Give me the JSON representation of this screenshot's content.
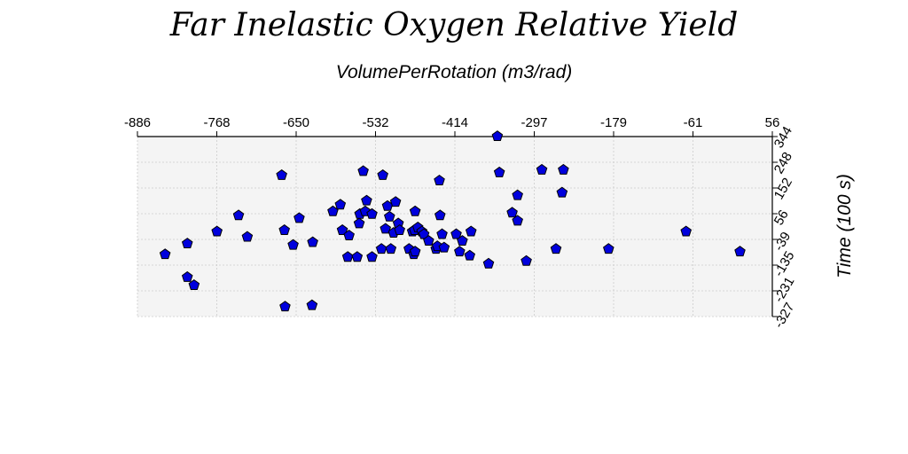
{
  "chart_data": {
    "type": "scatter",
    "title": "Far Inelastic Oxygen Relative Yield",
    "xlabel": "VolumePerRotation (m3/rad)",
    "ylabel": "Time (100 s)",
    "xlim": [
      -886,
      56
    ],
    "ylim": [
      -327,
      344
    ],
    "x_ticks": [
      "-886",
      "-768",
      "-650",
      "-532",
      "-414",
      "-297",
      "-179",
      "-61",
      "56"
    ],
    "y_ticks": [
      "344",
      "248",
      "152",
      "56",
      "-39",
      "-135",
      "-231",
      "-327"
    ],
    "x_axis_position": "top",
    "y_axis_position": "right",
    "grid": true,
    "marker": "pentagon",
    "colors": {
      "marker_fill": "#0000dd",
      "marker_edge": "#000000",
      "plot_bg": "#f4f4f4",
      "grid": "#cccccc"
    },
    "points": [
      {
        "x": -845,
        "y": -95
      },
      {
        "x": -812,
        "y": -55
      },
      {
        "x": -812,
        "y": -180
      },
      {
        "x": -802,
        "y": -210
      },
      {
        "x": -768,
        "y": -10
      },
      {
        "x": -736,
        "y": 50
      },
      {
        "x": -723,
        "y": -30
      },
      {
        "x": -672,
        "y": 200
      },
      {
        "x": -668,
        "y": -5
      },
      {
        "x": -667,
        "y": -290
      },
      {
        "x": -655,
        "y": -60
      },
      {
        "x": -646,
        "y": 40
      },
      {
        "x": -627,
        "y": -285
      },
      {
        "x": -626,
        "y": -50
      },
      {
        "x": -596,
        "y": 65
      },
      {
        "x": -585,
        "y": 90
      },
      {
        "x": -582,
        "y": -5
      },
      {
        "x": -574,
        "y": -105
      },
      {
        "x": -572,
        "y": -25
      },
      {
        "x": -560,
        "y": -105
      },
      {
        "x": -557,
        "y": 20
      },
      {
        "x": -556,
        "y": 55
      },
      {
        "x": -551,
        "y": 215
      },
      {
        "x": -548,
        "y": 65
      },
      {
        "x": -546,
        "y": 105
      },
      {
        "x": -538,
        "y": -105
      },
      {
        "x": -538,
        "y": 55
      },
      {
        "x": -524,
        "y": -75
      },
      {
        "x": -522,
        "y": 200
      },
      {
        "x": -518,
        "y": 0
      },
      {
        "x": -515,
        "y": 85
      },
      {
        "x": -512,
        "y": 45
      },
      {
        "x": -510,
        "y": -75
      },
      {
        "x": -506,
        "y": -15
      },
      {
        "x": -503,
        "y": 100
      },
      {
        "x": -499,
        "y": 20
      },
      {
        "x": -497,
        "y": -5
      },
      {
        "x": -483,
        "y": -75
      },
      {
        "x": -478,
        "y": -10
      },
      {
        "x": -476,
        "y": -95
      },
      {
        "x": -475,
        "y": -5
      },
      {
        "x": -474,
        "y": -85
      },
      {
        "x": -474,
        "y": 65
      },
      {
        "x": -470,
        "y": 5
      },
      {
        "x": -464,
        "y": -10
      },
      {
        "x": -461,
        "y": -20
      },
      {
        "x": -454,
        "y": -45
      },
      {
        "x": -443,
        "y": -75
      },
      {
        "x": -441,
        "y": -65
      },
      {
        "x": -438,
        "y": 180
      },
      {
        "x": -437,
        "y": 50
      },
      {
        "x": -434,
        "y": -20
      },
      {
        "x": -431,
        "y": -70
      },
      {
        "x": -413,
        "y": -20
      },
      {
        "x": -408,
        "y": -85
      },
      {
        "x": -404,
        "y": -45
      },
      {
        "x": -393,
        "y": -100
      },
      {
        "x": -391,
        "y": -10
      },
      {
        "x": -365,
        "y": -130
      },
      {
        "x": -352,
        "y": 345
      },
      {
        "x": -349,
        "y": 210
      },
      {
        "x": -330,
        "y": 60
      },
      {
        "x": -322,
        "y": 30
      },
      {
        "x": -322,
        "y": 125
      },
      {
        "x": -309,
        "y": -120
      },
      {
        "x": -286,
        "y": 220
      },
      {
        "x": -265,
        "y": -75
      },
      {
        "x": -256,
        "y": 135
      },
      {
        "x": -254,
        "y": 220
      },
      {
        "x": -187,
        "y": -75
      },
      {
        "x": -72,
        "y": -10
      },
      {
        "x": 8,
        "y": -85
      }
    ]
  }
}
